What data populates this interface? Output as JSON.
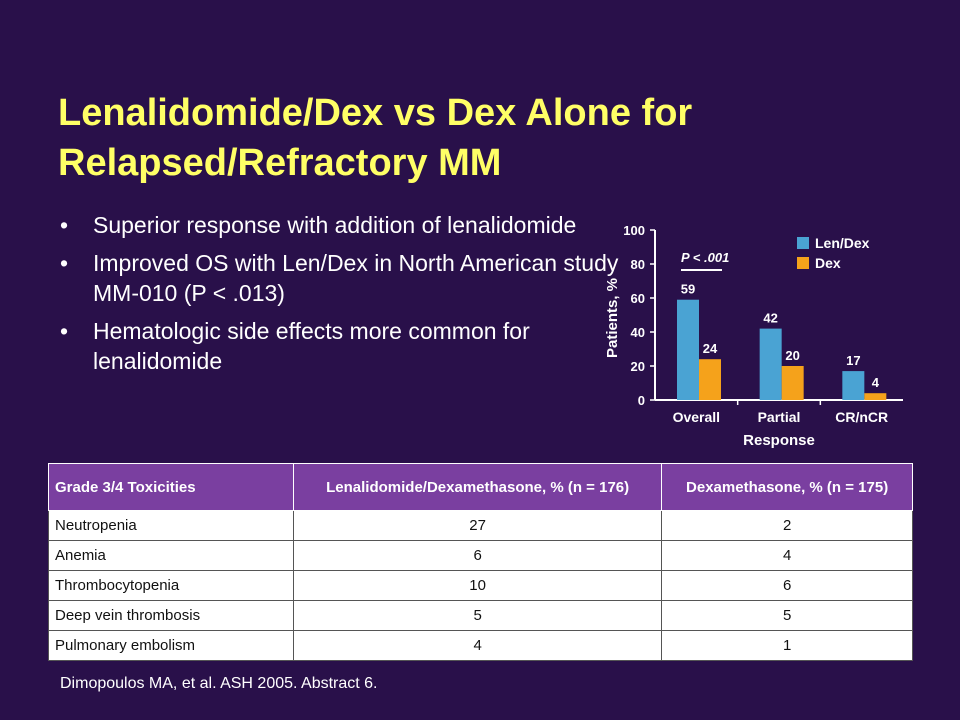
{
  "slide": {
    "title": "Lenalidomide/Dex vs Dex Alone for Relapsed/Refractory MM",
    "bullet_marker": "•",
    "bullets": [
      "Superior response with addition of lenalidomide",
      "Improved OS with Len/Dex in North American study MM-010 (P < .013)",
      "Hematologic side effects more common for lenalidomide"
    ],
    "reference": "Dimopoulos MA, et al. ASH 2005. Abstract 6."
  },
  "chart_data": {
    "type": "bar",
    "title": "",
    "xlabel": "Response",
    "ylabel": "Patients, %",
    "ylim": [
      0,
      100
    ],
    "yticks": [
      0,
      20,
      40,
      60,
      80,
      100
    ],
    "categories": [
      "Overall",
      "Partial",
      "CR/nCR"
    ],
    "series": [
      {
        "name": "Len/Dex",
        "values": [
          59,
          42,
          17
        ],
        "color": "#4aa3d3"
      },
      {
        "name": "Dex",
        "values": [
          24,
          20,
          4
        ],
        "color": "#f5a21b"
      }
    ],
    "annotation": "P < .001",
    "legend": "top-right",
    "grid": false
  },
  "table": {
    "headers": [
      "Grade 3/4 Toxicities",
      "Lenalidomide/Dexamethasone, % (n = 176)",
      "Dexamethasone, % (n = 175)"
    ],
    "rows": [
      [
        "Neutropenia",
        "27",
        "2"
      ],
      [
        "Anemia",
        "6",
        "4"
      ],
      [
        "Thrombocytopenia",
        "10",
        "6"
      ],
      [
        "Deep vein thrombosis",
        "5",
        "5"
      ],
      [
        "Pulmonary embolism",
        "4",
        "1"
      ]
    ]
  }
}
